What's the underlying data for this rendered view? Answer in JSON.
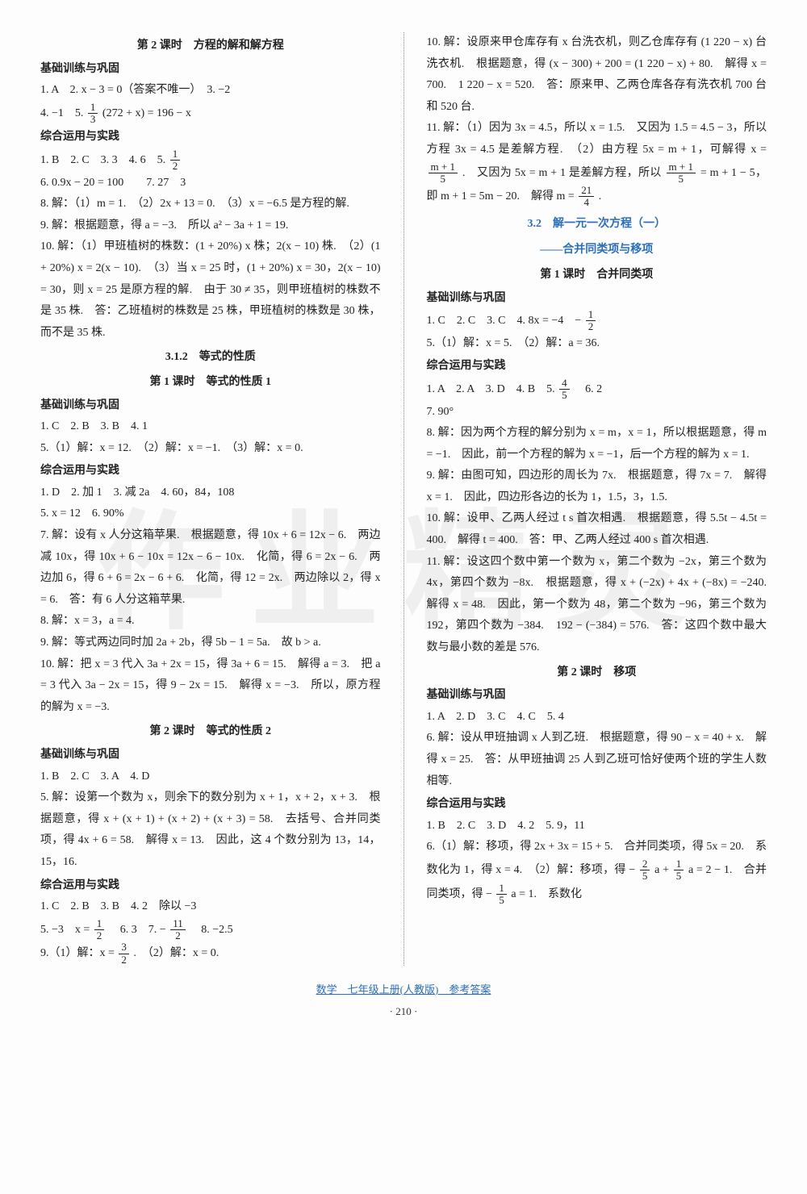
{
  "watermark": "作业精灵",
  "footer": {
    "line": "数学　七年级上册(人教版)　参考答案",
    "page": "· 210 ·"
  },
  "left": {
    "t1": "第 2 课时　方程的解和解方程",
    "h1": "基础训练与巩固",
    "p1": "1. A　2. x − 3 = 0（答案不唯一）　3. −2",
    "p2_a": "4. −1　5. ",
    "p2_b": "(272 + x) = 196 − x",
    "h2": "综合运用与实践",
    "p3_a": "1. B　2. C　3. 3　4. 6　5. ",
    "p4": "6. 0.9x − 20 = 100　　7. 27　3",
    "p5": "8. 解：（1）m = 1.　（2）2x + 13 = 0.　（3）x = −6.5 是方程的解.",
    "p6": "9. 解：根据题意，得 a = −3.　所以 a² − 3a + 1 = 19.",
    "p7": "10. 解：（1）甲班植树的株数：(1 + 20%) x 株；2(x − 10) 株.　（2）(1 + 20%) x = 2(x − 10).　（3）当 x = 25 时，(1 + 20%) x = 30，2(x − 10) = 30，则 x = 25 是原方程的解.　由于 30 ≠ 35，则甲班植树的株数不是 35 株.　答：乙班植树的株数是 25 株，甲班植树的株数是 30 株，而不是 35 株.",
    "t2a": "3.1.2　等式的性质",
    "t2b": "第 1 课时　等式的性质 1",
    "h3": "基础训练与巩固",
    "p8": "1. C　2. B　3. B　4. 1",
    "p9": "5.（1）解：x = 12.　（2）解：x = −1.　（3）解：x = 0.",
    "h4": "综合运用与实践",
    "p10": "1. D　2. 加 1　3. 减 2a　4. 60，84，108",
    "p11": "5. x = 12　6. 90%",
    "p12": "7. 解：设有 x 人分这箱苹果.　根据题意，得 10x + 6 = 12x − 6.　两边减 10x，得 10x + 6 − 10x = 12x − 6 − 10x.　化简，得 6 = 2x − 6.　两边加 6，得 6 + 6 = 2x − 6 + 6.　化简，得 12 = 2x.　两边除以 2，得 x = 6.　答：有 6 人分这箱苹果.",
    "p13": "8. 解：x = 3，a = 4.",
    "p14": "9. 解：等式两边同时加 2a + 2b，得 5b − 1 = 5a.　故 b > a.",
    "p15": "10. 解：把 x = 3 代入 3a + 2x = 15，得 3a + 6 = 15.　解得 a = 3.　把 a = 3 代入 3a − 2x = 15，得 9 − 2x = 15.　解得 x = −3.　所以，原方程的解为 x = −3.",
    "t3": "第 2 课时　等式的性质 2",
    "h5": "基础训练与巩固",
    "p16": "1. B　2. C　3. A　4. D",
    "p17": "5. 解：设第一个数为 x，则余下的数分别为 x + 1，x + 2，x + 3.　根据题意，得 x + (x + 1) + (x + 2) + (x + 3) = 58.　去括号、合并同类项，得 4x + 6 = 58.　解得 x = 13.　因此，这 4 个数分别为 13，14，15，16.",
    "h6": "综合运用与实践",
    "p18": "1. C　2. B　3. B　4. 2　除以 −3",
    "p19_a": "5. −3　x = ",
    "p19_b": "　6. 3　7. − ",
    "p19_c": "　8. −2.5",
    "p20_a": "9.（1）解：x = ",
    "p20_b": ".　（2）解：x = 0."
  },
  "right": {
    "p1": "10. 解：设原来甲仓库存有 x 台洗衣机，则乙仓库存有 (1 220 − x) 台洗衣机.　根据题意，得 (x − 300) + 200 = (1 220 − x) + 80.　解得 x = 700.　1 220 − x = 520.　答：原来甲、乙两仓库各存有洗衣机 700 台和 520 台.",
    "p2a": "11. 解：（1）因为 3x = 4.5，所以 x = 1.5.　又因为 1.5 = 4.5 − 3，所以方程 3x = 4.5 是差解方程.　（2）由方程 5x = m + 1，可解得 x = ",
    "p2b": ".　又因为 5x = m + 1 是差解方程，所以 ",
    "p2c": " = m + 1 − 5，即 m + 1 = 5m − 20.　解得 m = ",
    "p2d": ".",
    "ct1": "3.2　解一元一次方程（一）",
    "ct2": "——合并同类项与移项",
    "t1": "第 1 课时　合并同类项",
    "h1": "基础训练与巩固",
    "p3_a": "1. C　2. C　3. C　4. 8x = −4　− ",
    "p4": "5.（1）解：x = 5.　（2）解：a = 36.",
    "h2": "综合运用与实践",
    "p5_a": "1. A　2. A　3. D　4. B　5. ",
    "p5_b": "　6. 2",
    "p6": "7. 90°",
    "p7": "8. 解：因为两个方程的解分别为 x = m，x = 1，所以根据题意，得 m = −1.　因此，前一个方程的解为 x = −1，后一个方程的解为 x = 1.",
    "p8": "9. 解：由图可知，四边形的周长为 7x.　根据题意，得 7x = 7.　解得 x = 1.　因此，四边形各边的长为 1，1.5，3，1.5.",
    "p9": "10. 解：设甲、乙两人经过 t s 首次相遇.　根据题意，得 5.5t − 4.5t = 400.　解得 t = 400.　答：甲、乙两人经过 400 s 首次相遇.",
    "p10": "11. 解：设这四个数中第一个数为 x，第二个数为 −2x，第三个数为 4x，第四个数为 −8x.　根据题意，得 x + (−2x) + 4x + (−8x) = −240.　解得 x = 48.　因此，第一个数为 48，第二个数为 −96，第三个数为 192，第四个数为 −384.　192 − (−384) = 576.　答：这四个数中最大数与最小数的差是 576.",
    "t2": "第 2 课时　移项",
    "h3": "基础训练与巩固",
    "p11": "1. A　2. D　3. C　4. C　5. 4",
    "p12": "6. 解：设从甲班抽调 x 人到乙班.　根据题意，得 90 − x = 40 + x.　解得 x = 25.　答：从甲班抽调 25 人到乙班可恰好使两个班的学生人数相等.",
    "h4": "综合运用与实践",
    "p13": "1. B　2. C　3. D　4. 2　5. 9，11",
    "p14_a": "6.（1）解：移项，得 2x + 3x = 15 + 5.　合并同类项，得 5x = 20.　系数化为 1，得 x = 4.　（2）解：移项，得 − ",
    "p14_b": "a + ",
    "p14_c": "a = 2 − 1.　合并同类项，得 − ",
    "p14_d": "a = 1.　系数化"
  },
  "frac": {
    "one_third": {
      "n": "1",
      "d": "3"
    },
    "one_half": {
      "n": "1",
      "d": "2"
    },
    "eleven_two": {
      "n": "11",
      "d": "2"
    },
    "three_two": {
      "n": "3",
      "d": "2"
    },
    "m1_5": {
      "n": "m + 1",
      "d": "5"
    },
    "twentyone_four": {
      "n": "21",
      "d": "4"
    },
    "four_five": {
      "n": "4",
      "d": "5"
    },
    "two_five": {
      "n": "2",
      "d": "5"
    },
    "one_five": {
      "n": "1",
      "d": "5"
    }
  }
}
